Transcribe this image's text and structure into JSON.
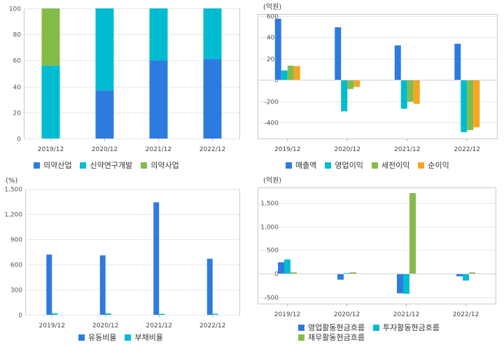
{
  "chart_data": [
    {
      "type": "bar",
      "stacked": true,
      "categories": [
        "2019/12",
        "2020/12",
        "2021/12",
        "2022/12"
      ],
      "ylim": [
        0,
        100
      ],
      "yticks": [
        0,
        20,
        40,
        60,
        80,
        100
      ],
      "ytick_labels": [
        "0",
        "20",
        "40",
        "60",
        "80",
        "100"
      ],
      "unit": "",
      "grid": true,
      "legend_position": "bottom",
      "series": [
        {
          "name": "의약산업",
          "color": "#2e7be0",
          "values": [
            0,
            37,
            60,
            61
          ]
        },
        {
          "name": "신약연구개발",
          "color": "#00bcd0",
          "values": [
            56,
            63,
            40,
            39
          ]
        },
        {
          "name": "의약사업",
          "color": "#84bc4a",
          "values": [
            44,
            0,
            0,
            0
          ]
        }
      ]
    },
    {
      "type": "bar",
      "stacked": false,
      "categories": [
        "2019/12",
        "2020/12",
        "2021/12",
        "2022/12"
      ],
      "ylim": [
        -550,
        620
      ],
      "yticks": [
        -400,
        -200,
        0,
        200,
        400,
        600
      ],
      "ytick_labels": [
        "-400",
        "-200",
        "0",
        "200",
        "400",
        "600"
      ],
      "unit": "(억원)",
      "grid": true,
      "legend_position": "bottom",
      "series": [
        {
          "name": "매출액",
          "color": "#2e7be0",
          "values": [
            575,
            495,
            325,
            340
          ]
        },
        {
          "name": "영업이익",
          "color": "#00bcd0",
          "values": [
            90,
            -295,
            -270,
            -490
          ]
        },
        {
          "name": "세전이익",
          "color": "#84bc4a",
          "values": [
            135,
            -85,
            -205,
            -470
          ]
        },
        {
          "name": "순이익",
          "color": "#f6a623",
          "values": [
            130,
            -65,
            -225,
            -445
          ]
        }
      ]
    },
    {
      "type": "bar",
      "stacked": false,
      "categories": [
        "2019/12",
        "2020/12",
        "2021/12",
        "2022/12"
      ],
      "ylim": [
        0,
        1500
      ],
      "yticks": [
        0,
        300,
        600,
        900,
        1200,
        1500
      ],
      "ytick_labels": [
        "0",
        "300",
        "600",
        "900",
        "1,200",
        "1,500"
      ],
      "unit": "(%)",
      "grid": true,
      "legend_position": "bottom",
      "series": [
        {
          "name": "유동비율",
          "color": "#2e7be0",
          "values": [
            718,
            708,
            1340,
            668
          ]
        },
        {
          "name": "부채비율",
          "color": "#00bcd0",
          "values": [
            18,
            17,
            12,
            12
          ]
        }
      ]
    },
    {
      "type": "bar",
      "stacked": false,
      "categories": [
        "2019/12",
        "2020/12",
        "2021/12",
        "2022/12"
      ],
      "ylim": [
        -640,
        1830
      ],
      "yticks": [
        -500,
        0,
        500,
        1000,
        1500
      ],
      "ytick_labels": [
        "-500",
        "0",
        "500",
        "1,000",
        "1,500"
      ],
      "unit": "(억원)",
      "grid": true,
      "legend_position": "bottom",
      "series": [
        {
          "name": "영업활동현금흐름",
          "color": "#2e7be0",
          "values": [
            240,
            -130,
            -420,
            -60
          ]
        },
        {
          "name": "투자활동현금흐름",
          "color": "#00bcd0",
          "values": [
            300,
            10,
            -430,
            -150
          ]
        },
        {
          "name": "재무활동현금흐름",
          "color": "#84bc4a",
          "values": [
            25,
            25,
            1710,
            25
          ]
        }
      ]
    }
  ]
}
